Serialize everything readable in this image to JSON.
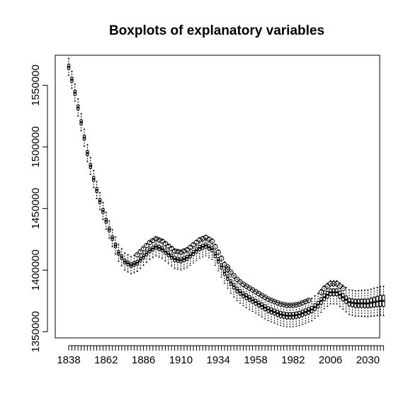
{
  "chart_data": {
    "type": "boxplot",
    "title": "Boxplots of explanatory variables",
    "xlabel": "",
    "ylabel": "",
    "x_start": 1838,
    "x_end": 2040,
    "x_step": 2,
    "x_tick_labels": [
      "1838",
      "1862",
      "1886",
      "1910",
      "1934",
      "1958",
      "1982",
      "2006",
      "2030"
    ],
    "y_tick_values": [
      1350000,
      1400000,
      1450000,
      1500000,
      1550000
    ],
    "y_tick_labels": [
      "1350000",
      "1400000",
      "1450000",
      "1500000",
      "1550000"
    ],
    "ylim": [
      1345000,
      1575000
    ],
    "grid": false,
    "legend": "none",
    "median_anchors": [
      [
        1838,
        1565000
      ],
      [
        1842,
        1544000
      ],
      [
        1846,
        1520000
      ],
      [
        1850,
        1495000
      ],
      [
        1854,
        1474000
      ],
      [
        1858,
        1456000
      ],
      [
        1862,
        1440000
      ],
      [
        1866,
        1426000
      ],
      [
        1870,
        1414000
      ],
      [
        1874,
        1407000
      ],
      [
        1878,
        1404000
      ],
      [
        1882,
        1406000
      ],
      [
        1886,
        1411000
      ],
      [
        1890,
        1416000
      ],
      [
        1894,
        1419000
      ],
      [
        1898,
        1417000
      ],
      [
        1902,
        1413000
      ],
      [
        1906,
        1409000
      ],
      [
        1910,
        1408000
      ],
      [
        1914,
        1410000
      ],
      [
        1918,
        1414000
      ],
      [
        1922,
        1418000
      ],
      [
        1926,
        1420000
      ],
      [
        1930,
        1417000
      ],
      [
        1934,
        1408000
      ],
      [
        1938,
        1398000
      ],
      [
        1942,
        1390000
      ],
      [
        1946,
        1384000
      ],
      [
        1950,
        1380000
      ],
      [
        1954,
        1377000
      ],
      [
        1958,
        1374000
      ],
      [
        1962,
        1371000
      ],
      [
        1966,
        1368000
      ],
      [
        1970,
        1366000
      ],
      [
        1974,
        1364000
      ],
      [
        1978,
        1363000
      ],
      [
        1982,
        1363000
      ],
      [
        1986,
        1364000
      ],
      [
        1990,
        1366000
      ],
      [
        1994,
        1368000
      ],
      [
        1998,
        1372000
      ],
      [
        2002,
        1378000
      ],
      [
        2006,
        1382000
      ],
      [
        2010,
        1382000
      ],
      [
        2014,
        1378000
      ],
      [
        2018,
        1374000
      ],
      [
        2022,
        1373000
      ],
      [
        2026,
        1373000
      ],
      [
        2030,
        1373000
      ],
      [
        2034,
        1374000
      ],
      [
        2038,
        1375000
      ],
      [
        2040,
        1375000
      ]
    ],
    "iqr_anchors": [
      [
        1838,
        4000
      ],
      [
        1874,
        3500
      ],
      [
        1950,
        4500
      ],
      [
        1982,
        5000
      ],
      [
        2010,
        5500
      ],
      [
        2030,
        7000
      ],
      [
        2040,
        9000
      ]
    ],
    "whisker_anchors": [
      [
        1838,
        7000
      ],
      [
        1874,
        7000
      ],
      [
        1950,
        9000
      ],
      [
        1982,
        9000
      ],
      [
        2010,
        9500
      ],
      [
        2030,
        11000
      ],
      [
        2040,
        12000
      ]
    ],
    "outlier_segments": [
      {
        "from": 1882,
        "to": 1912,
        "offset": 6500
      },
      {
        "from": 1914,
        "to": 1940,
        "offset": 6500
      },
      {
        "from": 1940,
        "to": 1992,
        "offset": 8500
      },
      {
        "from": 2000,
        "to": 2014,
        "offset": 7000
      }
    ]
  }
}
